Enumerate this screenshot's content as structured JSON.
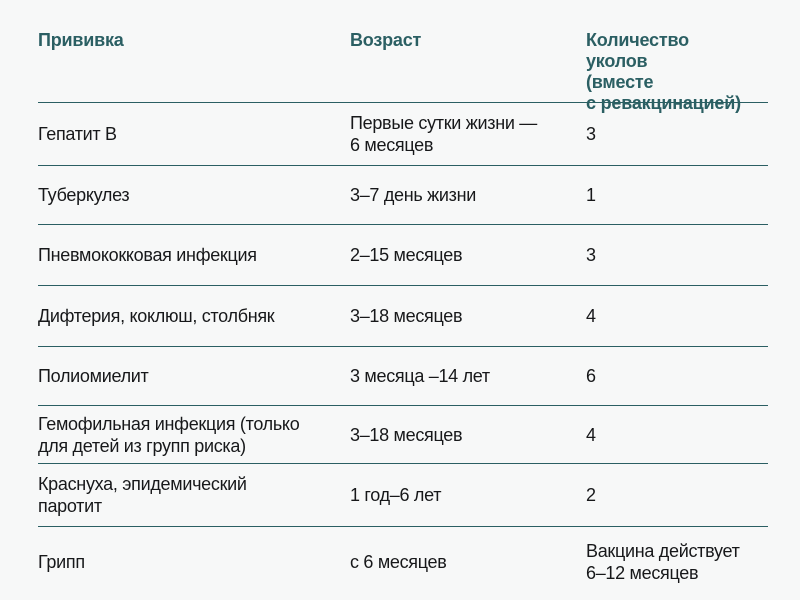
{
  "page": {
    "background": "#f7f8f8"
  },
  "colors": {
    "accent": "#2b5f63",
    "text": "#17181a"
  },
  "header": {
    "col1": "Прививка",
    "col2": "Возраст",
    "col3": "Количество уколов\n(вместе\nс ревакцинацией)"
  },
  "rows": [
    {
      "vaccine": "Гепатит В",
      "age": "Первые сутки жизни —\n6 месяцев",
      "count": "3"
    },
    {
      "vaccine": "Туберкулез",
      "age": "3–7 день жизни",
      "count": "1"
    },
    {
      "vaccine": "Пневмококковая инфекция",
      "age": "2–15 месяцев",
      "count": "3"
    },
    {
      "vaccine": "Дифтерия, коклюш, столбняк",
      "age": "3–18 месяцев",
      "count": "4"
    },
    {
      "vaccine": "Полиомиелит",
      "age": "3 месяца –14 лет",
      "count": "6"
    },
    {
      "vaccine": "Гемофильная инфекция (только\nдля детей из групп риска)",
      "age": "3–18 месяцев",
      "count": "4"
    },
    {
      "vaccine": "Краснуха, эпидемический\nпаротит",
      "age": "1 год–6 лет",
      "count": "2"
    },
    {
      "vaccine": "Грипп",
      "age": "с 6 месяцев",
      "count": "Вакцина действует\n6–12 месяцев"
    }
  ],
  "chart_data": {
    "type": "table",
    "columns": [
      "Прививка",
      "Возраст",
      "Количество уколов (вместе с ревакцинацией)"
    ],
    "rows": [
      [
        "Гепатит В",
        "Первые сутки жизни — 6 месяцев",
        "3"
      ],
      [
        "Туберкулез",
        "3–7 день жизни",
        "1"
      ],
      [
        "Пневмококковая инфекция",
        "2–15 месяцев",
        "3"
      ],
      [
        "Дифтерия, коклюш, столбняк",
        "3–18 месяцев",
        "4"
      ],
      [
        "Полиомиелит",
        "3 месяца – 14 лет",
        "6"
      ],
      [
        "Гемофильная инфекция (только для детей из групп риска)",
        "3–18 месяцев",
        "4"
      ],
      [
        "Краснуха, эпидемический паротит",
        "1 год – 6 лет",
        "2"
      ],
      [
        "Грипп",
        "с 6 месяцев",
        "Вакцина действует 6–12 месяцев"
      ]
    ],
    "layout": {
      "grid": "horizontal dividers only",
      "header_color": "#2b5f63"
    }
  }
}
